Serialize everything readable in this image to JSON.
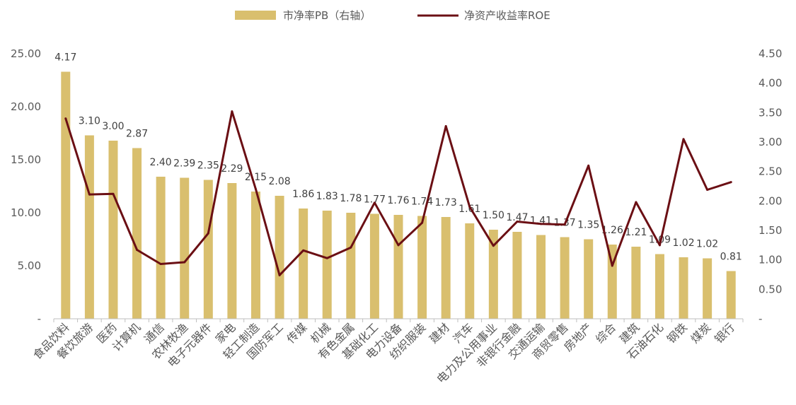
{
  "chart_data": {
    "type": "bar",
    "title": "",
    "categories": [
      "食品饮料",
      "餐饮旅游",
      "医药",
      "计算机",
      "通信",
      "农林牧渔",
      "电子元器件",
      "家电",
      "轻工制造",
      "国防军工",
      "传媒",
      "机械",
      "有色金属",
      "基础化工",
      "电力设备",
      "纺织服装",
      "建材",
      "汽车",
      "电力及公用事业",
      "非银行金融",
      "交通运输",
      "商贸零售",
      "房地产",
      "综合",
      "建筑",
      "石油石化",
      "钢铁",
      "煤炭",
      "银行"
    ],
    "series": [
      {
        "name": "市净率PB（右轴）",
        "type": "bar",
        "axis": "left",
        "color": "#d9bf6e",
        "values": [
          23.3,
          17.3,
          16.8,
          16.1,
          13.4,
          13.3,
          13.1,
          12.8,
          12.0,
          11.6,
          10.4,
          10.2,
          10.0,
          9.9,
          9.8,
          9.7,
          9.6,
          9.0,
          8.4,
          8.2,
          7.9,
          7.7,
          7.5,
          7.0,
          6.8,
          6.1,
          5.8,
          5.7,
          4.5
        ],
        "labels": [
          "4.17",
          "3.10",
          "3.00",
          "2.87",
          "2.40",
          "2.39",
          "2.35",
          "2.29",
          "2.15",
          "2.08",
          "1.86",
          "1.83",
          "1.78",
          "1.77",
          "1.76",
          "1.74",
          "1.73",
          "1.61",
          "1.50",
          "1.47",
          "1.41",
          "1.37",
          "1.35",
          "1.26",
          "1.21",
          "1.09",
          "1.02",
          "1.02",
          "0.81"
        ]
      },
      {
        "name": "净资产收益率ROE",
        "type": "line",
        "axis": "right",
        "color": "#6b0f14",
        "values": [
          3.4,
          2.11,
          2.12,
          1.17,
          0.93,
          0.96,
          1.45,
          3.52,
          2.2,
          0.74,
          1.16,
          1.03,
          1.21,
          1.97,
          1.25,
          1.63,
          3.27,
          1.9,
          1.24,
          1.65,
          1.61,
          1.6,
          2.6,
          0.9,
          1.98,
          1.25,
          3.05,
          2.19,
          2.32
        ]
      }
    ],
    "y_left": {
      "min": 0,
      "max": 25,
      "step": 5,
      "ticks": [
        "-",
        "5.00",
        "10.00",
        "15.00",
        "20.00",
        "25.00"
      ]
    },
    "y_right": {
      "min": 0,
      "max": 4.5,
      "step": 0.5,
      "ticks": [
        "-",
        "0.50",
        "1.00",
        "1.50",
        "2.00",
        "2.50",
        "3.00",
        "3.50",
        "4.00",
        "4.50"
      ]
    },
    "legend": {
      "position": "top-center"
    },
    "grid": false
  }
}
